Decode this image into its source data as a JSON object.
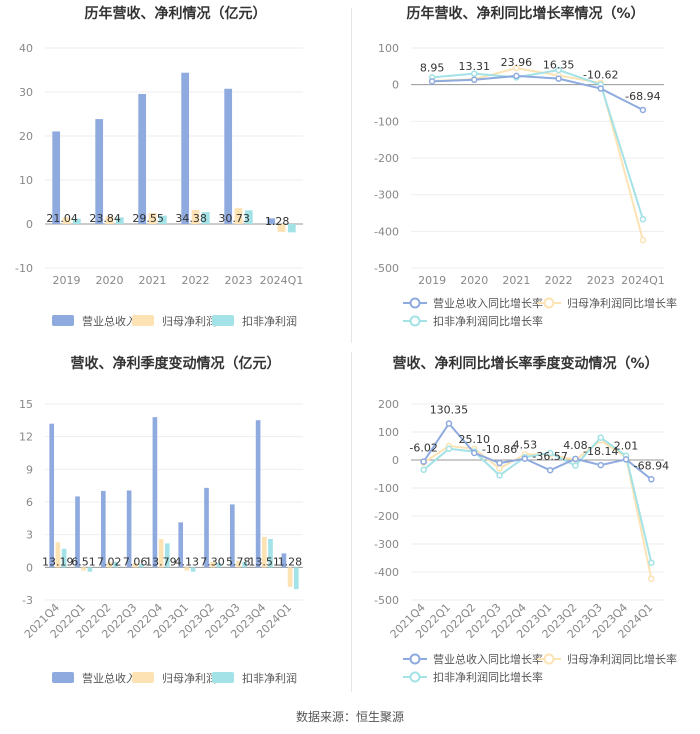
{
  "source": "数据来源：恒生聚源",
  "colors": {
    "revenue": "#8eaadf",
    "parent": "#fde3b4",
    "deducted": "#a3e2e6",
    "grid": "#eeeeee",
    "axis": "#888888"
  },
  "chart_data": [
    {
      "type": "bar",
      "title": "历年营收、净利情况（亿元）",
      "categories": [
        "2019",
        "2020",
        "2021",
        "2022",
        "2023",
        "2024Q1"
      ],
      "ylim": [
        -10,
        40
      ],
      "yticks": [
        40,
        30,
        20,
        10,
        0,
        -10
      ],
      "series": [
        {
          "name": "营业总收入",
          "values": [
            21.04,
            23.84,
            29.55,
            34.38,
            30.73,
            1.28
          ],
          "labels": [
            "21.04",
            "23.84",
            "29.55",
            "34.38",
            "30.73",
            "1.28"
          ]
        },
        {
          "name": "归母净利润",
          "values": [
            1.5,
            1.7,
            2.5,
            3.2,
            3.6,
            -1.8
          ]
        },
        {
          "name": "扣非净利润",
          "values": [
            1.2,
            1.5,
            1.9,
            2.7,
            3.1,
            -1.9
          ]
        }
      ]
    },
    {
      "type": "line",
      "title": "历年营收、净利同比增长率情况（%）",
      "categories": [
        "2019",
        "2020",
        "2021",
        "2022",
        "2023",
        "2024Q1"
      ],
      "ylim": [
        -500,
        100
      ],
      "yticks": [
        100,
        0,
        -100,
        -200,
        -300,
        -400,
        -500
      ],
      "series": [
        {
          "name": "营业总收入同比增长率",
          "values": [
            8.95,
            13.31,
            23.96,
            16.35,
            -10.62,
            -68.94
          ],
          "labels": [
            "8.95",
            "13.31",
            "23.96",
            "16.35",
            "-10.62",
            "-68.94"
          ]
        },
        {
          "name": "归母净利润同比增长率",
          "values": [
            10,
            15,
            45,
            25,
            5,
            -424
          ]
        },
        {
          "name": "扣非净利润同比增长率",
          "values": [
            20,
            30,
            20,
            40,
            0,
            -367
          ]
        }
      ]
    },
    {
      "type": "bar",
      "title": "营收、净利季度变动情况（亿元）",
      "categories": [
        "2021Q4",
        "2022Q1",
        "2022Q2",
        "2022Q3",
        "2022Q4",
        "2023Q1",
        "2023Q2",
        "2023Q3",
        "2023Q4",
        "2024Q1"
      ],
      "ylim": [
        -3,
        15
      ],
      "yticks": [
        15,
        12,
        9,
        6,
        3,
        0,
        -3
      ],
      "series": [
        {
          "name": "营业总收入",
          "values": [
            13.19,
            6.51,
            7.02,
            7.06,
            13.79,
            4.13,
            7.3,
            5.78,
            13.51,
            1.28
          ],
          "labels": [
            "13.19",
            "6.51",
            "7.02",
            "7.06",
            "13.79",
            "4.13",
            "7.30",
            "5.78",
            "13.51",
            "1.28"
          ]
        },
        {
          "name": "归母净利润",
          "values": [
            2.3,
            -0.3,
            0.5,
            0.4,
            2.6,
            -0.3,
            0.5,
            0.6,
            2.8,
            -1.8
          ]
        },
        {
          "name": "扣非净利润",
          "values": [
            1.7,
            -0.4,
            0.5,
            0.3,
            2.2,
            -0.4,
            0.4,
            0.5,
            2.6,
            -2.0
          ]
        }
      ]
    },
    {
      "type": "line",
      "title": "营收、净利同比增长率季度变动情况（%）",
      "categories": [
        "2021Q4",
        "2022Q1",
        "2022Q2",
        "2022Q3",
        "2022Q4",
        "2023Q1",
        "2023Q2",
        "2023Q3",
        "2023Q4",
        "2024Q1"
      ],
      "ylim": [
        -500,
        200
      ],
      "yticks": [
        200,
        100,
        0,
        -100,
        -200,
        -300,
        -400,
        -500
      ],
      "series": [
        {
          "name": "营业总收入同比增长率",
          "values": [
            -6.02,
            130.35,
            25.1,
            -10.86,
            4.53,
            -36.57,
            4.08,
            -18.14,
            2.01,
            -68.94
          ],
          "labels": [
            "-6.02",
            "130.35",
            "25.10",
            "-10.86",
            "4.53",
            "-36.57",
            "4.08",
            "-18.14",
            "2.01",
            "-68.94"
          ]
        },
        {
          "name": "归母净利润同比增长率",
          "values": [
            -10,
            50,
            40,
            -30,
            20,
            20,
            0,
            70,
            10,
            -424
          ]
        },
        {
          "name": "扣非净利润同比增长率",
          "values": [
            -35,
            40,
            30,
            -55,
            10,
            25,
            -20,
            80,
            15,
            -367
          ]
        }
      ]
    }
  ]
}
